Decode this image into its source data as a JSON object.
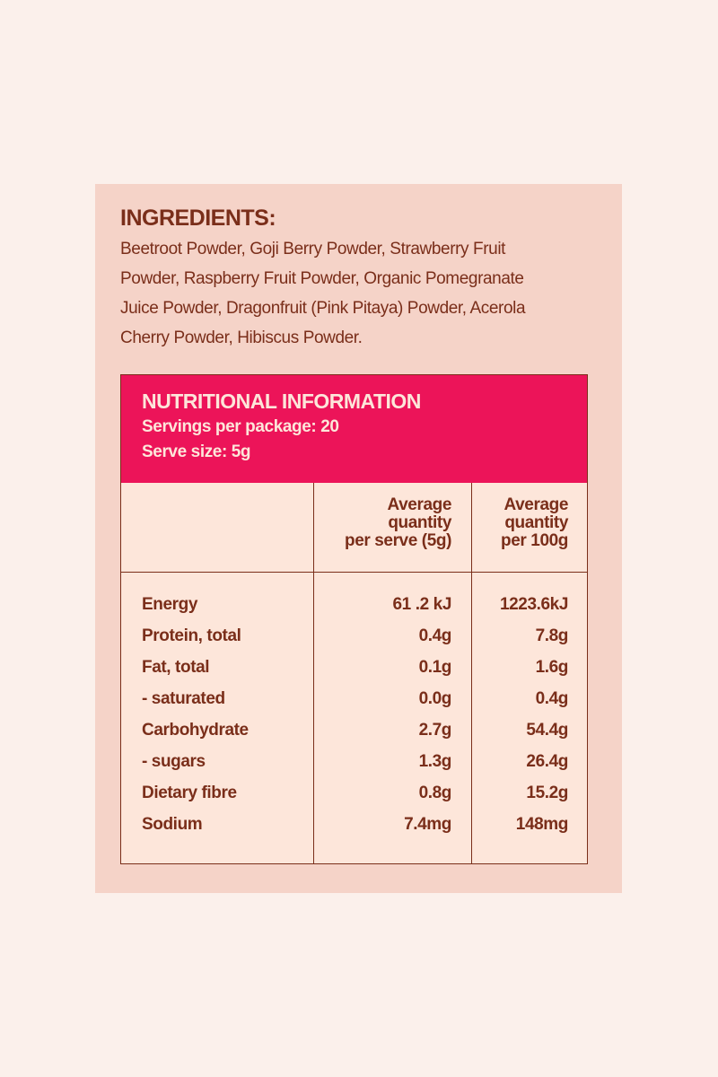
{
  "ingredients": {
    "heading": "INGREDIENTS:",
    "lines": [
      "Beetroot Powder, Goji Berry Powder, Strawberry Fruit",
      "Powder, Raspberry Fruit Powder, Organic Pomegranate",
      "Juice Powder, Dragonfruit (Pink Pitaya) Powder, Acerola",
      "Cherry Powder, Hibiscus Powder."
    ]
  },
  "nutrition": {
    "title": "NUTRITIONAL INFORMATION",
    "servings": "Servings per package: 20",
    "serve_size": "Serve size: 5g",
    "columns": [
      [
        "Average",
        "quantity",
        "per serve (5g)"
      ],
      [
        "Average",
        "quantity",
        "per 100g"
      ]
    ],
    "rows": [
      [
        "Energy",
        "61 .2 kJ",
        "1223.6kJ"
      ],
      [
        "Protein, total",
        "0.4g",
        "7.8g"
      ],
      [
        "Fat, total",
        "0.1g",
        "1.6g"
      ],
      [
        "- saturated",
        "0.0g",
        "0.4g"
      ],
      [
        "Carbohydrate",
        "2.7g",
        "54.4g"
      ],
      [
        "- sugars",
        "1.3g",
        "26.4g"
      ],
      [
        "Dietary fibre",
        "0.8g",
        "15.2g"
      ],
      [
        "Sodium",
        "7.4mg",
        "148mg"
      ]
    ]
  }
}
